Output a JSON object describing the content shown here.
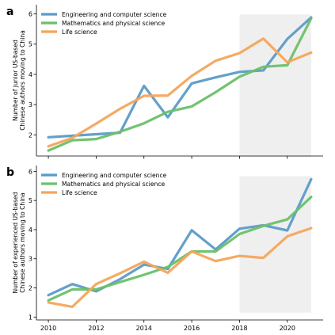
{
  "chart_data": [
    {
      "type": "line",
      "panel_label": "a",
      "ylabel": "Number of junior US-based\nChinese authors moving to China",
      "xlabel": "",
      "x": [
        2010,
        2011,
        2012,
        2013,
        2014,
        2015,
        2016,
        2017,
        2018,
        2019,
        2020,
        2021
      ],
      "xlim": [
        2009.5,
        2021.5
      ],
      "ylim": [
        1.3,
        6.3
      ],
      "yticks": [
        2,
        3,
        4,
        5,
        6
      ],
      "xticks": [],
      "shaded_x_range": [
        2018,
        2021
      ],
      "legend_placement": "top-left",
      "series": [
        {
          "name": "Engineering and computer science",
          "color": "#5b9bc8",
          "values": [
            1.92,
            1.97,
            2.02,
            2.07,
            3.62,
            2.58,
            3.7,
            3.9,
            4.08,
            4.13,
            5.17,
            5.88
          ]
        },
        {
          "name": "Mathematics and physical science",
          "color": "#6cbf6a",
          "values": [
            1.48,
            1.82,
            1.86,
            2.1,
            2.38,
            2.76,
            2.94,
            3.41,
            3.92,
            4.25,
            4.3,
            5.85
          ]
        },
        {
          "name": "Life science",
          "color": "#f4a55a",
          "values": [
            1.62,
            1.9,
            2.37,
            2.86,
            3.29,
            3.3,
            3.95,
            4.45,
            4.7,
            5.18,
            4.4,
            4.72
          ]
        }
      ]
    },
    {
      "type": "line",
      "panel_label": "b",
      "ylabel": "Number of experienced US-based\nChinese authors moving to China",
      "xlabel": "",
      "x": [
        2010,
        2011,
        2012,
        2013,
        2014,
        2015,
        2016,
        2017,
        2018,
        2019,
        2020,
        2021
      ],
      "xlim": [
        2009.5,
        2021.5
      ],
      "ylim": [
        0.9,
        6.2
      ],
      "yticks": [
        1,
        2,
        3,
        4,
        5,
        6
      ],
      "xticks": [
        2010,
        2012,
        2014,
        2016,
        2018,
        2020
      ],
      "shaded_x_range": [
        2018,
        2021
      ],
      "legend_placement": "top-left",
      "series": [
        {
          "name": "Engineering and computer science",
          "color": "#5b9bc8",
          "values": [
            1.75,
            2.13,
            1.88,
            2.3,
            2.8,
            2.65,
            3.98,
            3.32,
            4.03,
            4.15,
            3.97,
            5.73
          ]
        },
        {
          "name": "Mathematics and physical science",
          "color": "#6cbf6a",
          "values": [
            1.57,
            1.95,
            1.95,
            2.2,
            2.45,
            2.72,
            3.25,
            3.25,
            3.85,
            4.13,
            4.35,
            5.12
          ]
        },
        {
          "name": "Life science",
          "color": "#f4a55a",
          "values": [
            1.5,
            1.35,
            2.13,
            2.5,
            2.9,
            2.52,
            3.25,
            2.92,
            3.1,
            3.03,
            3.77,
            4.05
          ]
        }
      ]
    }
  ]
}
